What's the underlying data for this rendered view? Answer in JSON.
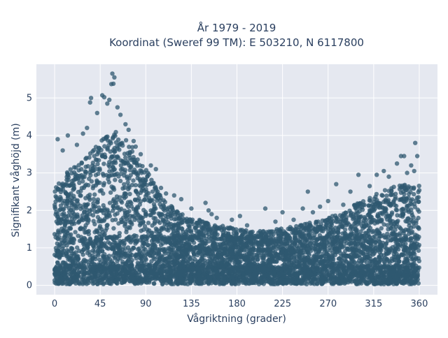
{
  "chart_data": {
    "type": "scatter",
    "title_line1": "År 1979 - 2019",
    "title_line2": "Koordinat (Sweref 99 TM): E 503210, N 6117800",
    "xlabel": "Vågriktning (grader)",
    "ylabel": "Signifikant våghöjd (m)",
    "xlim": [
      -18,
      378
    ],
    "ylim": [
      -0.25,
      5.9
    ],
    "x_ticks": [
      0,
      45,
      90,
      135,
      180,
      225,
      270,
      315,
      360
    ],
    "y_ticks": [
      0,
      1,
      2,
      3,
      4,
      5
    ],
    "grid": true,
    "marker_color": "#2f5870",
    "plot_background": "#e5e8f0",
    "envelope": {
      "x": [
        0,
        15,
        30,
        45,
        60,
        75,
        90,
        105,
        120,
        135,
        150,
        165,
        180,
        195,
        210,
        225,
        240,
        255,
        270,
        285,
        300,
        315,
        330,
        345,
        360
      ],
      "y_max": [
        2.6,
        3.1,
        3.4,
        3.9,
        4.1,
        3.8,
        3.1,
        2.4,
        2.0,
        1.8,
        1.7,
        1.6,
        1.5,
        1.45,
        1.45,
        1.55,
        1.6,
        1.7,
        1.8,
        2.0,
        2.2,
        2.4,
        2.6,
        2.7,
        2.8
      ]
    },
    "outliers": [
      {
        "x": 57,
        "y": 5.65
      },
      {
        "x": 59,
        "y": 5.55
      },
      {
        "x": 58,
        "y": 5.38
      },
      {
        "x": 56,
        "y": 5.37
      },
      {
        "x": 47,
        "y": 5.07
      },
      {
        "x": 49,
        "y": 5.02
      },
      {
        "x": 54,
        "y": 4.95
      },
      {
        "x": 36,
        "y": 5.0
      },
      {
        "x": 35,
        "y": 4.88
      },
      {
        "x": 62,
        "y": 4.75
      },
      {
        "x": 65,
        "y": 4.55
      },
      {
        "x": 42,
        "y": 4.6
      },
      {
        "x": 52,
        "y": 4.85
      },
      {
        "x": 70,
        "y": 4.3
      },
      {
        "x": 73,
        "y": 4.15
      },
      {
        "x": 32,
        "y": 4.2
      },
      {
        "x": 28,
        "y": 4.05
      },
      {
        "x": 78,
        "y": 3.85
      },
      {
        "x": 80,
        "y": 3.7
      },
      {
        "x": 13,
        "y": 4.0
      },
      {
        "x": 3,
        "y": 3.9
      },
      {
        "x": 8,
        "y": 3.6
      },
      {
        "x": 22,
        "y": 3.75
      },
      {
        "x": 85,
        "y": 3.5
      },
      {
        "x": 95,
        "y": 3.2
      },
      {
        "x": 100,
        "y": 3.1
      },
      {
        "x": 92,
        "y": 3.0
      },
      {
        "x": 105,
        "y": 2.6
      },
      {
        "x": 110,
        "y": 2.45
      },
      {
        "x": 118,
        "y": 2.4
      },
      {
        "x": 125,
        "y": 2.3
      },
      {
        "x": 135,
        "y": 2.05
      },
      {
        "x": 149,
        "y": 2.2
      },
      {
        "x": 152,
        "y": 2.0
      },
      {
        "x": 155,
        "y": 1.9
      },
      {
        "x": 160,
        "y": 1.8
      },
      {
        "x": 175,
        "y": 1.75
      },
      {
        "x": 183,
        "y": 1.85
      },
      {
        "x": 190,
        "y": 1.6
      },
      {
        "x": 208,
        "y": 2.05
      },
      {
        "x": 218,
        "y": 1.7
      },
      {
        "x": 225,
        "y": 1.95
      },
      {
        "x": 236,
        "y": 1.75
      },
      {
        "x": 245,
        "y": 2.05
      },
      {
        "x": 250,
        "y": 2.5
      },
      {
        "x": 255,
        "y": 1.95
      },
      {
        "x": 262,
        "y": 2.1
      },
      {
        "x": 270,
        "y": 2.25
      },
      {
        "x": 278,
        "y": 2.7
      },
      {
        "x": 285,
        "y": 2.15
      },
      {
        "x": 292,
        "y": 2.5
      },
      {
        "x": 300,
        "y": 2.95
      },
      {
        "x": 311,
        "y": 2.65
      },
      {
        "x": 318,
        "y": 2.95
      },
      {
        "x": 325,
        "y": 3.05
      },
      {
        "x": 330,
        "y": 2.9
      },
      {
        "x": 338,
        "y": 3.25
      },
      {
        "x": 342,
        "y": 3.45
      },
      {
        "x": 345,
        "y": 3.45
      },
      {
        "x": 356,
        "y": 3.8
      },
      {
        "x": 358,
        "y": 3.45
      },
      {
        "x": 352,
        "y": 3.2
      },
      {
        "x": 355,
        "y": 3.05
      },
      {
        "x": 348,
        "y": 3.0
      }
    ]
  }
}
